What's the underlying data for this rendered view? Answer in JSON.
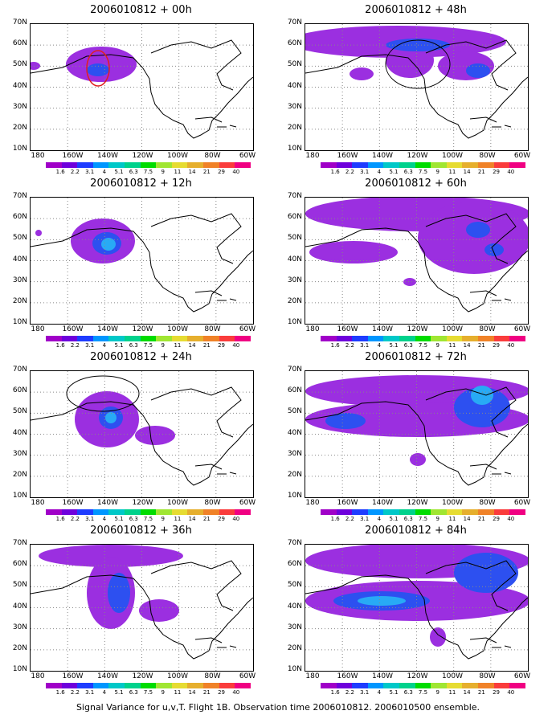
{
  "panels": [
    {
      "title": "2006010812 + 00h"
    },
    {
      "title": "2006010812 + 48h"
    },
    {
      "title": "2006010812 + 12h"
    },
    {
      "title": "2006010812 + 60h"
    },
    {
      "title": "2006010812 + 24h"
    },
    {
      "title": "2006010812 + 72h"
    },
    {
      "title": "2006010812 + 36h"
    },
    {
      "title": "2006010812 + 84h"
    }
  ],
  "axes": {
    "lat_labels": [
      "70N",
      "60N",
      "50N",
      "40N",
      "30N",
      "20N",
      "10N"
    ],
    "lon_labels": [
      "180",
      "160W",
      "140W",
      "120W",
      "100W",
      "80W",
      "60W"
    ]
  },
  "colorbar": {
    "labels": [
      "1.6",
      "2.2",
      "3.1",
      "4",
      "5.1",
      "6.3",
      "7.5",
      "9",
      "11",
      "14",
      "21",
      "29",
      "40"
    ],
    "colors": [
      "#a000c8",
      "#6e00dc",
      "#1e3cff",
      "#0096ff",
      "#00c8c8",
      "#00d28c",
      "#00dc00",
      "#a0e632",
      "#e6dc32",
      "#e6af2d",
      "#f08228",
      "#fa3c3c",
      "#f00082"
    ]
  },
  "footer": "Signal Variance for u,v,T. Flight 1B. Observation time 2006010812. 2006010500 ensemble."
}
